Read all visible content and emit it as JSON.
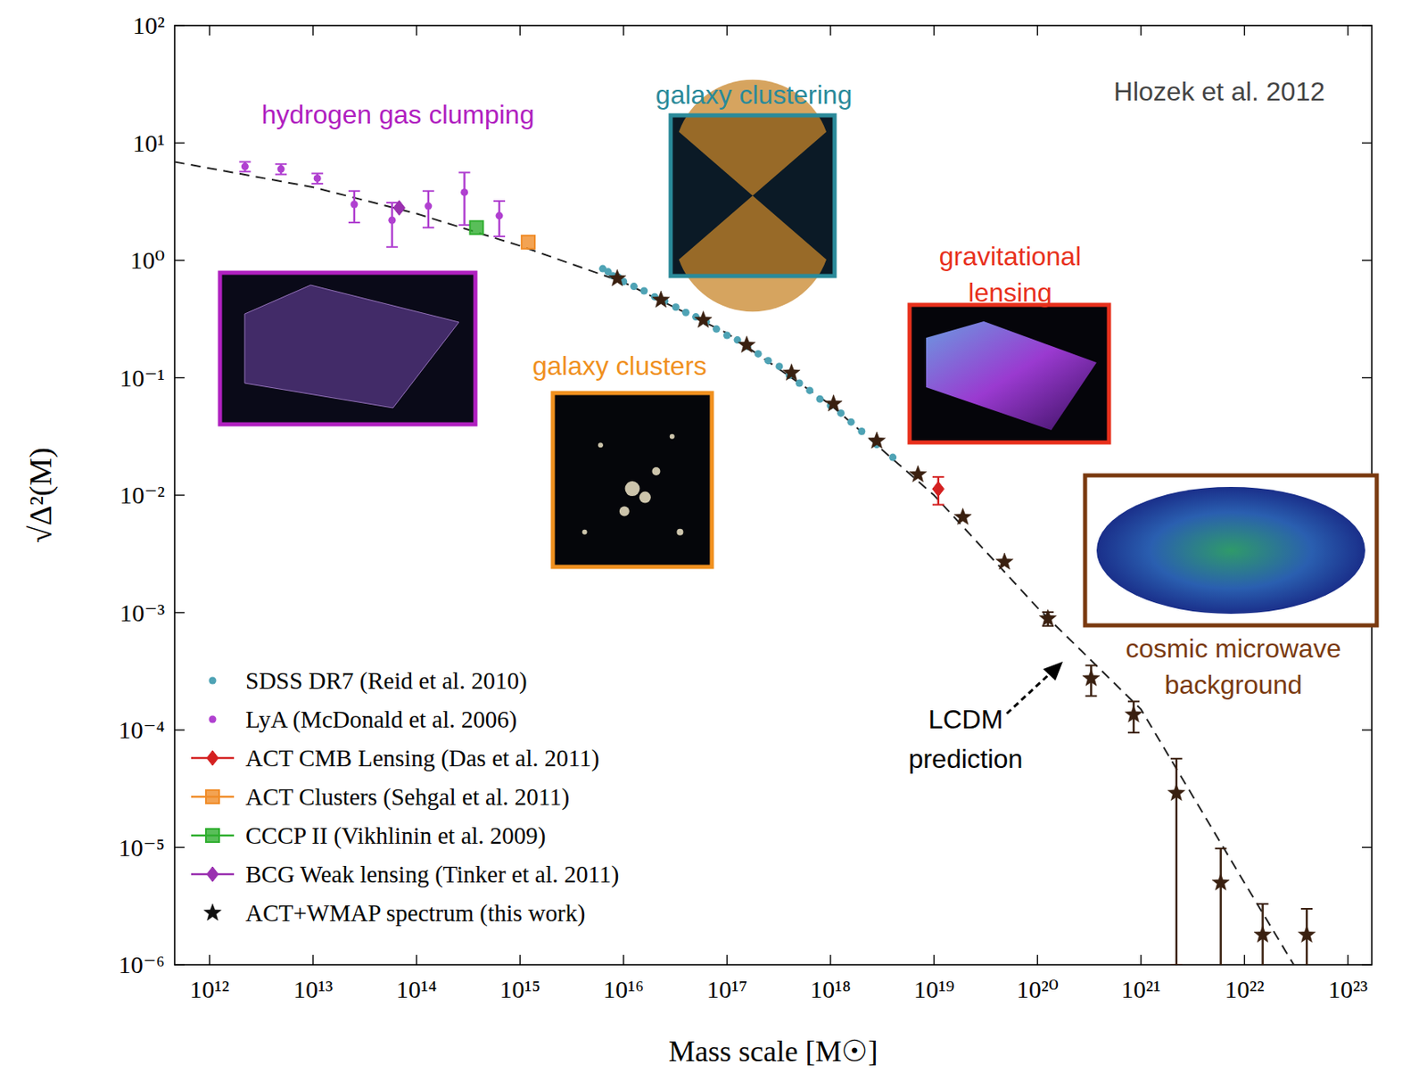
{
  "chart_data": {
    "type": "scatter",
    "xlabel": "Mass scale [M☉]",
    "ylabel": "√Δ²(M)",
    "log": true,
    "grid": false,
    "legend": "lower left",
    "xlim": [
      460000000000.0,
      1.7e+23
    ],
    "ylim": [
      1e-06,
      100
    ],
    "xticks": [
      {
        "value": 1000000000000.0,
        "label": "10¹²"
      },
      {
        "value": 10000000000000.0,
        "label": "10¹³"
      },
      {
        "value": 100000000000000.0,
        "label": "10¹⁴"
      },
      {
        "value": 1000000000000000.0,
        "label": "10¹⁵"
      },
      {
        "value": 1e+16,
        "label": "10¹⁶"
      },
      {
        "value": 1e+17,
        "label": "10¹⁷"
      },
      {
        "value": 1e+18,
        "label": "10¹⁸"
      },
      {
        "value": 1e+19,
        "label": "10¹⁹"
      },
      {
        "value": 1e+20,
        "label": "10²⁰"
      },
      {
        "value": 1e+21,
        "label": "10²¹"
      },
      {
        "value": 1e+22,
        "label": "10²²"
      },
      {
        "value": 1e+23,
        "label": "10²³"
      }
    ],
    "yticks": [
      {
        "value": 1e-06,
        "label": "10⁻⁶"
      },
      {
        "value": 1e-05,
        "label": "10⁻⁵"
      },
      {
        "value": 0.0001,
        "label": "10⁻⁴"
      },
      {
        "value": 0.001,
        "label": "10⁻³"
      },
      {
        "value": 0.01,
        "label": "10⁻²"
      },
      {
        "value": 0.1,
        "label": "10⁻¹"
      },
      {
        "value": 1,
        "label": "10⁰"
      },
      {
        "value": 10,
        "label": "10¹"
      },
      {
        "value": 100,
        "label": "10²"
      }
    ],
    "series": [
      {
        "name": "SDSS DR7 (Reid et al. 2010)",
        "color": "#4fa3b5",
        "marker": "dot",
        "x": [
          6300000000000000.0,
          7100000000000000.0,
          7900000000000000.0,
          8900000000000000.0,
          1e+16,
          1.26e+16,
          1.58e+16,
          2e+16,
          2.5e+16,
          3.2e+16,
          4e+16,
          5e+16,
          6.3e+16,
          7.9e+16,
          1e+17,
          1.26e+17,
          1.58e+17,
          2e+17,
          2.5e+17,
          3.2e+17,
          4e+17,
          5e+17,
          6.3e+17,
          7.9e+17,
          1e+18,
          1.26e+18,
          1.58e+18,
          2e+18,
          2.8e+18,
          4e+18
        ],
        "values": [
          0.85,
          0.8,
          0.74,
          0.72,
          0.66,
          0.6,
          0.55,
          0.49,
          0.45,
          0.4,
          0.36,
          0.33,
          0.3,
          0.26,
          0.23,
          0.21,
          0.185,
          0.16,
          0.14,
          0.125,
          0.105,
          0.09,
          0.078,
          0.066,
          0.058,
          0.05,
          0.042,
          0.035,
          0.027,
          0.021
        ]
      },
      {
        "name": "LyA (McDonald et al. 2006)",
        "color": "#b040d0",
        "marker": "dot",
        "x": [
          2200000000000.0,
          4900000000000.0,
          11000000000000.0,
          25000000000000.0,
          58000000000000.0,
          130000000000000.0,
          290000000000000.0,
          630000000000000.0
        ],
        "values": [
          6.3,
          6.0,
          5.0,
          3.0,
          2.2,
          2.9,
          3.8,
          2.4
        ],
        "errors": [
          0.6,
          0.6,
          0.5,
          0.9,
          0.9,
          1.0,
          1.8,
          0.8
        ]
      },
      {
        "name": "ACT CMB Lensing (Das et al. 2011)",
        "color": "#d42020",
        "marker": "diamond",
        "x": [
          1.1e+19
        ],
        "values": [
          0.0113
        ],
        "errors": [
          0.003
        ]
      },
      {
        "name": "ACT Clusters (Sehgal et al. 2011)",
        "color": "#f08c28",
        "marker": "square",
        "x": [
          1200000000000000.0
        ],
        "values": [
          1.43
        ]
      },
      {
        "name": "CCCP II (Vikhlinin et al. 2009)",
        "color": "#2fae2f",
        "marker": "square",
        "x": [
          380000000000000.0
        ],
        "values": [
          1.9
        ]
      },
      {
        "name": "BCG Weak lensing (Tinker et al. 2011)",
        "color": "#9a30b0",
        "marker": "diamond",
        "x": [
          68000000000000.0
        ],
        "values": [
          2.8
        ]
      },
      {
        "name": "ACT+WMAP spectrum (this work)",
        "color": "#3a2010",
        "marker": "star",
        "x": [
          8700000000000000.0,
          2.3e+16,
          5.9e+16,
          1.55e+17,
          4.2e+17,
          1.07e+18,
          2.8e+18,
          7e+18,
          1.9e+19,
          4.8e+19,
          1.26e+20,
          3.3e+20,
          8.5e+20,
          2.2e+21,
          5.9e+21,
          1.5e+22,
          4e+22
        ],
        "values": [
          0.7,
          0.46,
          0.31,
          0.19,
          0.11,
          0.06,
          0.029,
          0.015,
          0.0065,
          0.0027,
          0.00089,
          0.000275,
          0.000135,
          2.9e-05,
          5e-06,
          1.8e-06,
          1.8e-06
        ],
        "errors": [
          null,
          null,
          null,
          null,
          null,
          null,
          null,
          null,
          null,
          null,
          0.00012,
          8e-05,
          4e-05,
          2.8e-05,
          4.8e-06,
          1.5e-06,
          1.2e-06
        ]
      },
      {
        "name": "LCDM prediction",
        "type": "line",
        "line_style": "dashed",
        "color": "#222222",
        "x": [
          460000000000.0,
          10000000000000.0,
          100000000000000.0,
          1000000000000000.0,
          1e+16,
          1e+17,
          1e+18,
          1e+19,
          1e+20,
          1e+21,
          1e+22,
          3e+22
        ],
        "values": [
          6.9,
          4.2,
          2.5,
          1.33,
          0.65,
          0.24,
          0.059,
          0.01,
          0.0011,
          0.00015,
          5e-06,
          1e-06
        ]
      }
    ],
    "annotations": [
      {
        "text": "hydrogen gas clumping",
        "color": "#b020c0"
      },
      {
        "text": "galaxy clustering",
        "color": "#2a8a9a"
      },
      {
        "text": "gravitational lensing",
        "color": "#e8301c"
      },
      {
        "text": "galaxy clusters",
        "color": "#f0901e"
      },
      {
        "text": "cosmic microwave background",
        "color": "#7a3a10"
      },
      {
        "text": "Hlozek et al. 2012",
        "color": "#444444"
      }
    ]
  }
}
